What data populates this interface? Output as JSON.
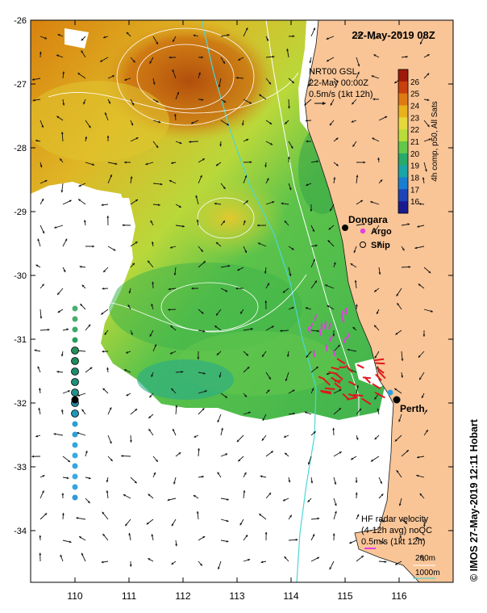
{
  "map": {
    "title": "22-May-2019 08Z",
    "info": {
      "line1": "NRT00 GSL",
      "line2": "22-May 00:00Z",
      "line3": "0.5m/s (1kt 12h)"
    },
    "colorbar": {
      "label": "4h comp, p50, All Sats",
      "ticks": [
        "26",
        "25",
        "24",
        "23",
        "22",
        "21",
        "20",
        "19",
        "18",
        "17",
        "16"
      ],
      "colors": [
        "#9e1a0a",
        "#c8400e",
        "#de7a12",
        "#e8b21e",
        "#e6d83a",
        "#b8dc3a",
        "#62c84a",
        "#28ab6a",
        "#1aa6a8",
        "#1a7ed0",
        "#1c44b8",
        "#1a1a8e"
      ]
    },
    "y_ticks": [
      "-26",
      "-27",
      "-28",
      "-29",
      "-30",
      "-31",
      "-32",
      "-33",
      "-34"
    ],
    "x_ticks": [
      "110",
      "111",
      "112",
      "113",
      "114",
      "115",
      "116"
    ],
    "places": {
      "dongara": "Dongara",
      "perth": "Perth"
    },
    "legend": {
      "argo": "Argo",
      "ship": "Ship"
    },
    "hf_radar": {
      "line1": "HF radar velocity",
      "line2": "(4-12h avg) noQC",
      "line3": "0.5m/s (1kt 12h)"
    },
    "depth_legend": {
      "d200": "200m",
      "d1000": "1000m"
    },
    "copyright": "© IMOS 27-May-2019 12:11 Hobart",
    "colors": {
      "land": "#f9c597",
      "coastline": "#1a1a1a",
      "isobath_1000": "#4dd6d6",
      "hf_arrow": "#e0161c",
      "argo": "#e040e0"
    }
  }
}
